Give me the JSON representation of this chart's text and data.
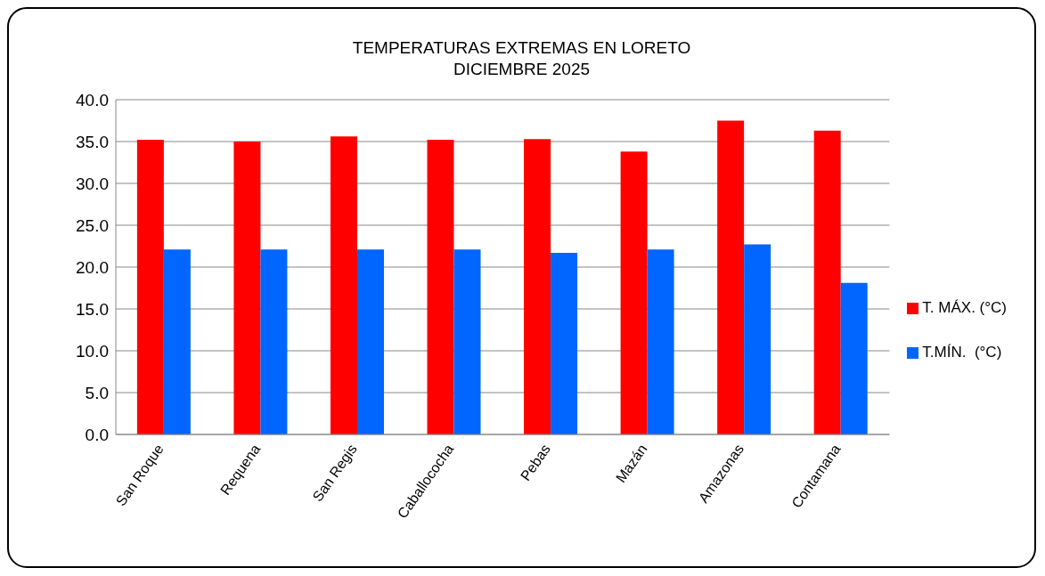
{
  "chart_data": {
    "type": "bar",
    "title": "TEMPERATURAS EXTREMAS EN LORETO\nDICIEMBRE 2025",
    "categories": [
      "San Roque",
      "Requena",
      "San Regis",
      "Caballococha",
      "Pebas",
      "Mazán",
      "Amazonas",
      "Contamana"
    ],
    "series": [
      {
        "name": "T. MÁX. (°C)",
        "color": "#ff0000",
        "values": [
          35.2,
          35.0,
          35.6,
          35.2,
          35.3,
          33.8,
          37.5,
          36.3
        ]
      },
      {
        "name": "T.MÍN.  (°C)",
        "color": "#0066ff",
        "values": [
          22.1,
          22.1,
          22.1,
          22.1,
          21.7,
          22.1,
          22.7,
          18.1
        ]
      }
    ],
    "ylim": [
      0,
      40
    ],
    "yticks": [
      {
        "value": 0,
        "label": "0.0"
      },
      {
        "value": 5,
        "label": "5.0"
      },
      {
        "value": 10,
        "label": "10.0"
      },
      {
        "value": 15,
        "label": "15.0"
      },
      {
        "value": 20,
        "label": "20.0"
      },
      {
        "value": 25,
        "label": "25.0"
      },
      {
        "value": 30,
        "label": "30.0"
      },
      {
        "value": 35,
        "label": "35.0"
      },
      {
        "value": 40,
        "label": "40.0"
      }
    ],
    "grid": "y",
    "legend": "right"
  }
}
